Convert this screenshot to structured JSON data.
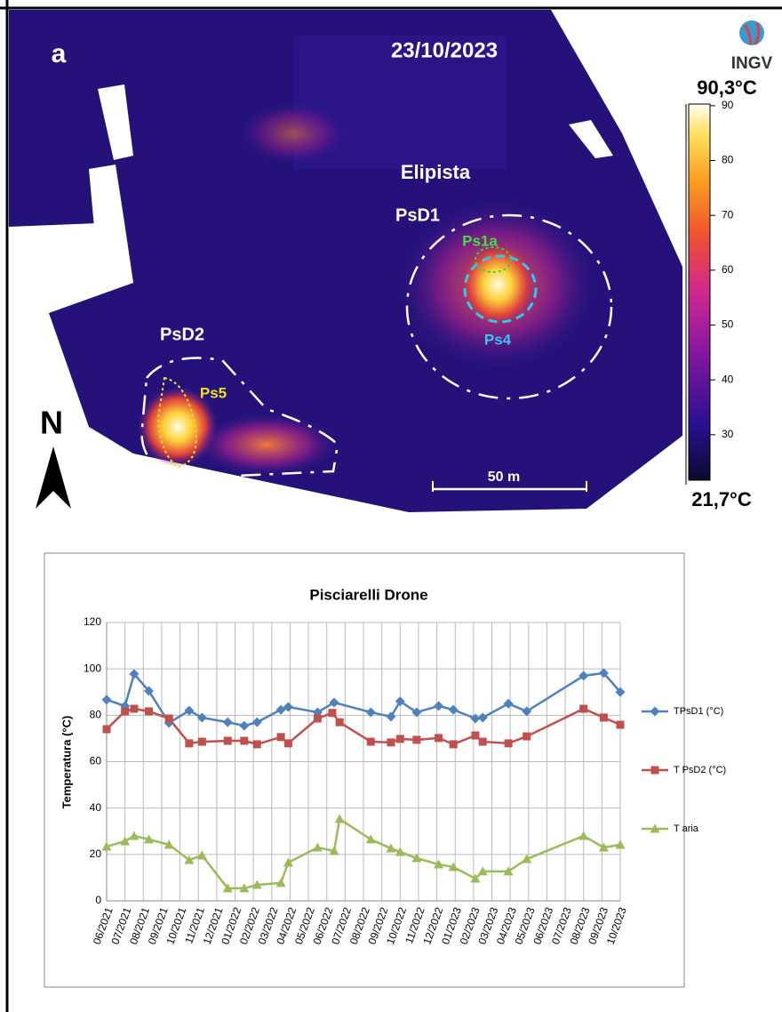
{
  "map": {
    "panel_label": "a",
    "date": "23/10/2023",
    "logo": "INGV",
    "labels": {
      "elipista": "Elipista",
      "psd1": "PsD1",
      "ps1a": "Ps1a",
      "ps4": "Ps4",
      "psd2": "PsD2",
      "ps5": "Ps5"
    },
    "north": "N",
    "scale": "50 m",
    "colorbar": {
      "lim": [
        21.7,
        90.3
      ],
      "ticks": [
        30,
        40,
        50,
        60,
        70,
        80,
        90
      ],
      "max_label": "90,3°C",
      "min_label": "21,7°C"
    }
  },
  "chart_data": {
    "type": "line",
    "title": "Pisciarelli Drone",
    "y_label": "Temperatura (°C)",
    "xlim": [
      0,
      28
    ],
    "xticks": [
      {
        "value": 0,
        "label": "06/2021"
      },
      {
        "value": 1,
        "label": "07/2021"
      },
      {
        "value": 2,
        "label": "08/2021"
      },
      {
        "value": 3,
        "label": "09/2021"
      },
      {
        "value": 4,
        "label": "10/2021"
      },
      {
        "value": 5,
        "label": "11/2021"
      },
      {
        "value": 6,
        "label": "12/2021"
      },
      {
        "value": 7,
        "label": "01/2022"
      },
      {
        "value": 8,
        "label": "02/2022"
      },
      {
        "value": 9,
        "label": "03/2022"
      },
      {
        "value": 10,
        "label": "04/2022"
      },
      {
        "value": 11,
        "label": "05/2022"
      },
      {
        "value": 12,
        "label": "06/2022"
      },
      {
        "value": 13,
        "label": "07/2022"
      },
      {
        "value": 14,
        "label": "08/2022"
      },
      {
        "value": 15,
        "label": "09/2022"
      },
      {
        "value": 16,
        "label": "10/2022"
      },
      {
        "value": 17,
        "label": "11/2022"
      },
      {
        "value": 18,
        "label": "12/2022"
      },
      {
        "value": 19,
        "label": "01/2023"
      },
      {
        "value": 20,
        "label": "02/2023"
      },
      {
        "value": 21,
        "label": "03/2023"
      },
      {
        "value": 22,
        "label": "04/2023"
      },
      {
        "value": 23,
        "label": "05/2023"
      },
      {
        "value": 24,
        "label": "06/2023"
      },
      {
        "value": 25,
        "label": "07/2023"
      },
      {
        "value": 26,
        "label": "08/2023"
      },
      {
        "value": 27,
        "label": "09/2023"
      },
      {
        "value": 28,
        "label": "10/2023"
      }
    ],
    "ylim": [
      0,
      120
    ],
    "yticks": [
      0,
      20,
      40,
      60,
      80,
      100,
      120
    ],
    "grid": true,
    "series": [
      {
        "name": "TPsD1 (°C)",
        "color": "#4f81bd",
        "marker": "diamond",
        "x": [
          0,
          1,
          1.5,
          2.3,
          3.4,
          4.5,
          5.2,
          6.6,
          7.5,
          8.2,
          9.5,
          9.9,
          11.5,
          12.4,
          14.4,
          15.5,
          16,
          16.9,
          18.1,
          18.9,
          20.1,
          20.5,
          21.9,
          22.9,
          26,
          27.1,
          28
        ],
        "values": [
          86.7,
          84,
          97.8,
          90.5,
          76.7,
          82,
          79,
          77,
          75.5,
          77,
          82.4,
          83.6,
          81.3,
          85.5,
          81.3,
          79.4,
          86,
          81.3,
          84,
          82.4,
          78.6,
          79,
          85,
          81.7,
          97,
          98.2,
          90
        ]
      },
      {
        "name": "T PsD2 (°C)",
        "color": "#c0504d",
        "marker": "square",
        "x": [
          0,
          1,
          1.5,
          2.3,
          3.4,
          4.5,
          5.2,
          6.6,
          7.5,
          8.2,
          9.5,
          9.9,
          11.5,
          12.3,
          12.7,
          14.4,
          15.5,
          16,
          16.9,
          18.1,
          18.9,
          20.1,
          20.5,
          21.9,
          22.9,
          26,
          27.1,
          28
        ],
        "values": [
          74,
          81.7,
          82.8,
          81.7,
          78.6,
          67.9,
          68.6,
          69,
          69,
          67.5,
          70.6,
          67.9,
          78.6,
          81,
          77,
          68.6,
          68.3,
          69.8,
          69.4,
          70.2,
          67.5,
          71.3,
          68.6,
          67.9,
          70.9,
          82.8,
          79,
          75.9
        ]
      },
      {
        "name": "T aria",
        "color": "#9bbb59",
        "marker": "triangle",
        "x": [
          0,
          1,
          1.5,
          2.3,
          3.4,
          4.5,
          5.2,
          6.6,
          7.5,
          8.2,
          9.5,
          9.9,
          11.5,
          12.4,
          12.7,
          14.4,
          15.5,
          16,
          16.9,
          18.1,
          18.9,
          20.1,
          20.5,
          21.9,
          22.9,
          26,
          27.1,
          28
        ],
        "values": [
          23.4,
          25.7,
          28,
          26.5,
          24.2,
          17.6,
          19.6,
          5.4,
          5.4,
          6.9,
          7.7,
          16.5,
          23,
          21.5,
          35.3,
          26.5,
          22.6,
          21.1,
          18.4,
          15.7,
          14.6,
          9.6,
          12.7,
          12.7,
          18,
          28,
          23,
          24.2
        ]
      }
    ]
  }
}
